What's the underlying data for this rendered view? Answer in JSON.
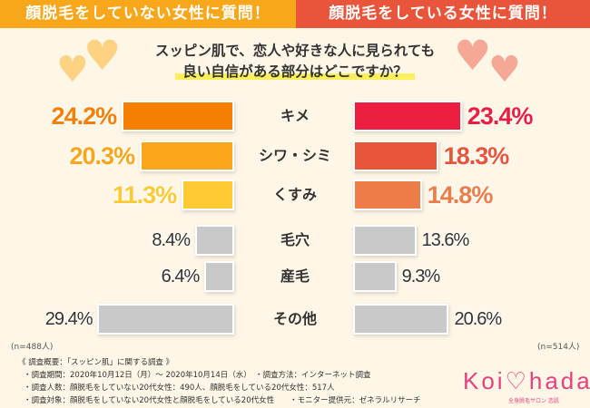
{
  "header": {
    "left": "顔脱毛をしていない女性に質問！",
    "right": "顔脱毛をしている女性に質問！"
  },
  "question": {
    "line1": "スッピン肌で、恋人や好きな人に見られても",
    "line2": "良い自信がある部分はどこですか？"
  },
  "chart_data": {
    "type": "bar",
    "title": "スッピン肌で、恋人や好きな人に見られても良い自信がある部分はどこですか？",
    "categories": [
      "キメ",
      "シワ・シミ",
      "くすみ",
      "毛穴",
      "産毛",
      "その他"
    ],
    "series": [
      {
        "name": "顔脱毛をしていない女性",
        "n": "(n=488人)",
        "values": [
          24.2,
          20.3,
          11.3,
          8.4,
          6.4,
          29.4
        ],
        "labels": [
          "24.2%",
          "20.3%",
          "11.3%",
          "8.4%",
          "6.4%",
          "29.4%"
        ],
        "colors": [
          "#f57f00",
          "#f9a61a",
          "#fec933",
          "#c9c9c9",
          "#c9c9c9",
          "#c9c9c9"
        ]
      },
      {
        "name": "顔脱毛をしている女性",
        "n": "(n=514人)",
        "values": [
          23.4,
          18.3,
          14.8,
          13.6,
          9.3,
          20.6
        ],
        "labels": [
          "23.4%",
          "18.3%",
          "14.8%",
          "13.6%",
          "9.3%",
          "20.6%"
        ],
        "colors": [
          "#ec1e40",
          "#e9553a",
          "#ec7d48",
          "#c9c9c9",
          "#c9c9c9",
          "#c9c9c9"
        ]
      }
    ]
  },
  "notes": [
    "《 調査概要：「スッピン肌」に関する調査 》",
    "・調査期間：2020年10月12日（月）～ 2020年10月14日（水）　・調査方法：インターネット調査",
    "・調査人数：顔脱毛をしていない20代女性：490人、顔脱毛をしている20代女性：517人",
    "・調査対象：顔脱毛をしていない20代女性と顔脱毛をしている20代女性　　・モニター提供元：ゼネラルリサーチ"
  ],
  "logo": {
    "name": "Koi♡hada",
    "sub": "全身脱毛サロン 恋肌"
  }
}
